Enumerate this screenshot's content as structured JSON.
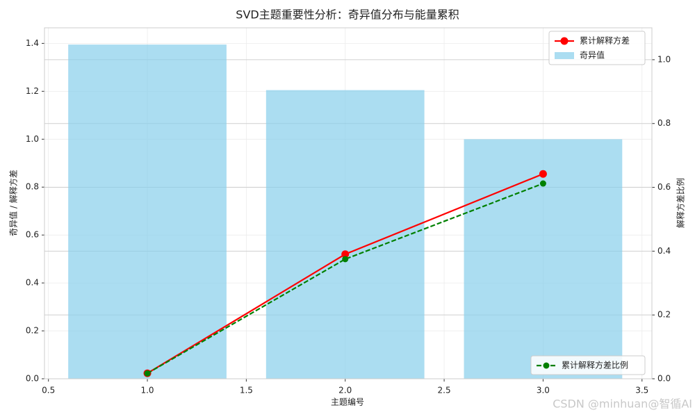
{
  "chart_data": {
    "type": "combo",
    "title": "SVD主题重要性分析：奇异值分布与能量累积",
    "x_label": "主题编号",
    "y_label": "奇异值 / 解释方差",
    "y2_label": "解释方差比例",
    "watermark": "CSDN @minhuan@智循AI",
    "x": [
      1,
      2,
      3
    ],
    "xlim": [
      0.48,
      3.55
    ],
    "xticks": [
      0.5,
      {
        "value": 1,
        "label": "1.0"
      },
      1.5,
      {
        "value": 2,
        "label": "2.0"
      },
      2.5,
      {
        "value": 3,
        "label": "3.0"
      },
      3.5
    ],
    "ylim": [
      0,
      1.465
    ],
    "yticks": [
      {
        "value": 0,
        "label": "0.0"
      },
      0.2,
      0.4,
      0.6,
      0.8,
      {
        "value": 1,
        "label": "1.0"
      },
      1.2,
      1.4
    ],
    "y2lim": [
      0,
      1.1
    ],
    "y2ticks": [
      {
        "value": 0,
        "label": "0.0"
      },
      0.2,
      0.4,
      0.6,
      0.8,
      {
        "value": 1,
        "label": "1.0"
      }
    ],
    "grid": true,
    "series": [
      {
        "name": "累计解释方差",
        "type": "line",
        "color": "#ff0000",
        "linestyle": "solid",
        "legend": "upper right",
        "values": [
          0.023,
          0.52,
          0.855
        ]
      },
      {
        "name": "奇异值",
        "type": "bar",
        "color": "#87ceeb",
        "legend": "upper right",
        "values": [
          1.395,
          1.205,
          1.0
        ]
      },
      {
        "name": "累计解释方差比例",
        "type": "line",
        "color": "#008000",
        "linestyle": "dashed",
        "axis": "y2",
        "legend": "lower right",
        "values": [
          0.017,
          0.375,
          0.612
        ]
      }
    ]
  }
}
